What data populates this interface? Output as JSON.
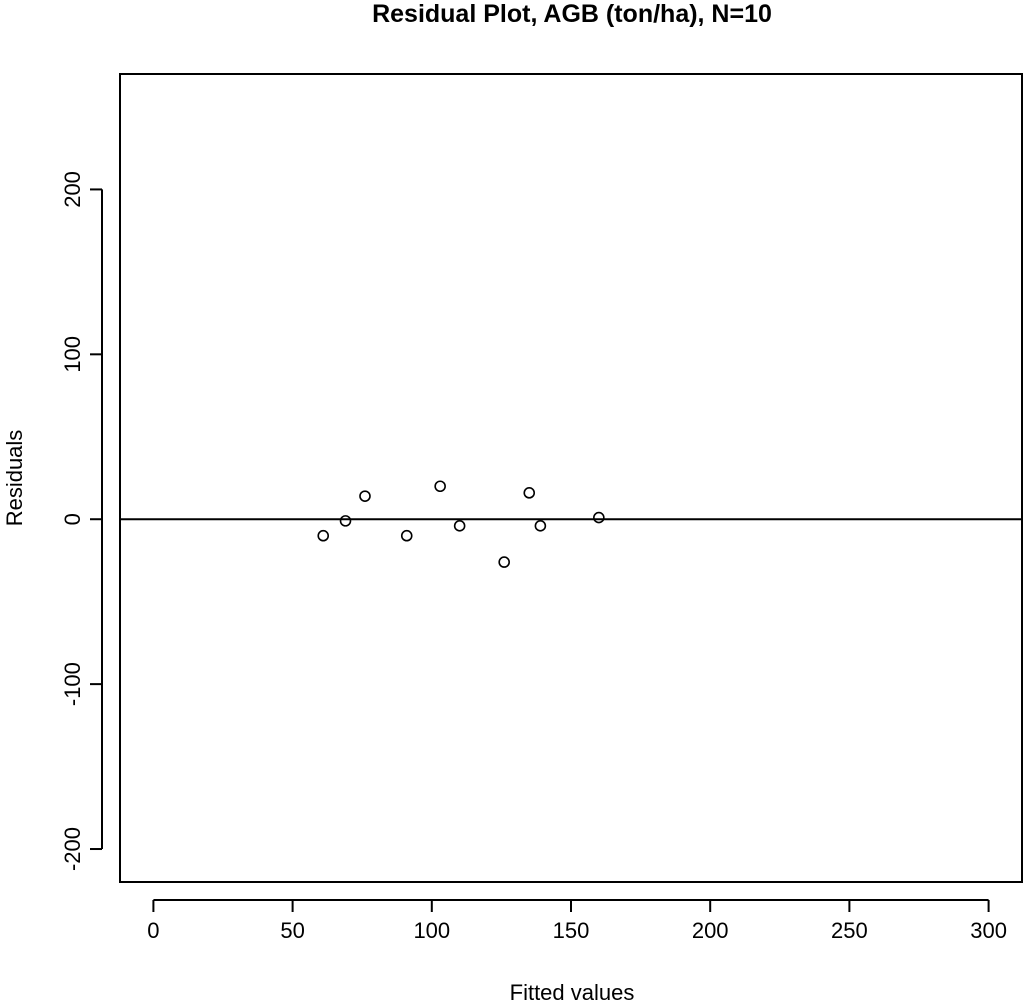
{
  "chart_data": {
    "type": "scatter",
    "title": "Residual Plot, AGB (ton/ha), N=10",
    "xlabel": "Fitted values",
    "ylabel": "Residuals",
    "xlim": [
      -12,
      312
    ],
    "ylim": [
      -220,
      270
    ],
    "xticks": [
      0,
      50,
      100,
      150,
      200,
      250,
      300
    ],
    "yticks": [
      -200,
      -100,
      0,
      100,
      200
    ],
    "reference_line_y": 0,
    "grid": false,
    "legend": "none",
    "points": [
      {
        "x": 61,
        "y": -10
      },
      {
        "x": 69,
        "y": -1
      },
      {
        "x": 76,
        "y": 14
      },
      {
        "x": 91,
        "y": -10
      },
      {
        "x": 103,
        "y": 20
      },
      {
        "x": 110,
        "y": -4
      },
      {
        "x": 126,
        "y": -26
      },
      {
        "x": 135,
        "y": 16
      },
      {
        "x": 139,
        "y": -4
      },
      {
        "x": 160,
        "y": 1
      }
    ]
  }
}
